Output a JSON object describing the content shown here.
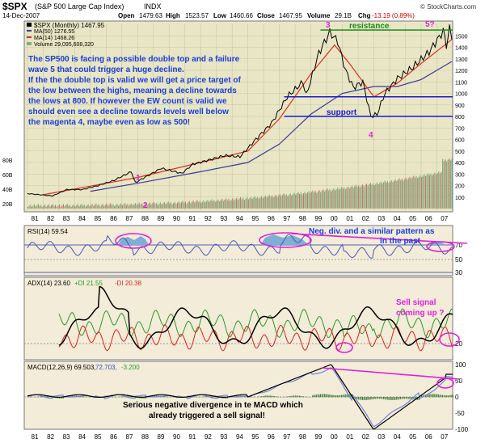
{
  "header": {
    "symbol": "$SPX",
    "name": "(S&P 500 Large Cap Index)",
    "exchange": "INDX",
    "date": "14-Dec-2007",
    "open_label": "Open",
    "open": "1479.63",
    "high_label": "High",
    "high": "1523.57",
    "low_label": "Low",
    "low": "1460.66",
    "close_label": "Close",
    "close": "1467.95",
    "volume_label": "Volume",
    "volume": "29.1B",
    "chg_label": "Chg",
    "chg": "-13.19 (0.89%)",
    "source": "© StockCharts.com"
  },
  "colors": {
    "price_panel_bg": "#e8e6c4",
    "indicator_bg": "#f3ecd8",
    "price": "#000000",
    "ma50": "#3a3aa0",
    "ma14": "#e03020",
    "annotation_text": "#1a3fe0",
    "magenta": "#e020d8",
    "resistance": "#1a8a1a",
    "support": "#1a1ad0"
  },
  "legend": {
    "price": "$SPX (Monthly) 1467.95",
    "ma50": "MA(50) 1276.55",
    "ma14": "MA(14) 1468.26",
    "volume": "Volume 29,095,608,320"
  },
  "annotations": {
    "main_text": [
      "The SP500 is facing a possible double top and a failure",
      "wave 5 that could trigger a huge decline.",
      "If the the double top is valid we will get a price target of",
      "the low between the highs, meaning a decline towards",
      "the lows at 800. If however the EW count is valid we",
      "should even see a decline towards levels well below",
      "the magenta 4, maybe even as low as 500!"
    ],
    "resistance": "resistance",
    "support": "support",
    "wave_labels": [
      "1",
      "2",
      "3",
      "4",
      "5?"
    ],
    "rsi_note": [
      "Neg. div. and a similar pattern as",
      "in the past"
    ],
    "adx_note": [
      "Sell signal",
      "coming up ?"
    ],
    "macd_note": [
      "Serious negative divergence in te MACD which",
      "already triggered a sell signal!"
    ]
  },
  "indicators": {
    "rsi_label": "RSI(14) 59.54",
    "adx_label": "ADX(14) 23.60",
    "pdi_label": "+DI 21.55",
    "mdi_label": "-DI 20.38",
    "macd_label": "MACD(12,26,9) 69.503,",
    "macd_signal_label": "72.703,",
    "macd_hist_label": "-3.200"
  },
  "chart_data": {
    "type": "line",
    "x_axis_labels": [
      "81",
      "82",
      "83",
      "84",
      "85",
      "86",
      "87",
      "88",
      "89",
      "90",
      "91",
      "92",
      "93",
      "94",
      "95",
      "96",
      "97",
      "98",
      "99",
      "00",
      "01",
      "02",
      "03",
      "04",
      "05",
      "06",
      "07"
    ],
    "price_axis_ticks": [
      1500,
      1400,
      1300,
      1200,
      1100,
      1000,
      900,
      800,
      700,
      600,
      500,
      400,
      300,
      200,
      100
    ],
    "volume_axis_ticks": [
      "80B",
      "60B",
      "40B",
      "20B"
    ],
    "rsi_ticks": [
      70,
      50,
      30
    ],
    "adx_ticks": [
      20
    ],
    "macd_ticks": [
      100,
      50,
      0,
      -50,
      -100
    ],
    "resistance_level": 1550,
    "support_levels": [
      970,
      800
    ],
    "series_price": [
      [
        1981.0,
        130
      ],
      [
        1982.6,
        110
      ],
      [
        1983.5,
        165
      ],
      [
        1984.5,
        165
      ],
      [
        1985.5,
        200
      ],
      [
        1986.5,
        245
      ],
      [
        1987.6,
        320
      ],
      [
        1987.85,
        225
      ],
      [
        1989.5,
        350
      ],
      [
        1990.8,
        305
      ],
      [
        1991.5,
        385
      ],
      [
        1992.5,
        420
      ],
      [
        1993.5,
        460
      ],
      [
        1994.5,
        450
      ],
      [
        1995.5,
        600
      ],
      [
        1996.5,
        740
      ],
      [
        1997.5,
        970
      ],
      [
        1998.5,
        1100
      ],
      [
        1998.7,
        980
      ],
      [
        1999.5,
        1350
      ],
      [
        2000.2,
        1530
      ],
      [
        2000.7,
        1450
      ],
      [
        2001.2,
        1200
      ],
      [
        2001.7,
        1050
      ],
      [
        2002.3,
        1100
      ],
      [
        2002.8,
        800
      ],
      [
        2003.2,
        820
      ],
      [
        2003.7,
        1000
      ],
      [
        2004.5,
        1130
      ],
      [
        2005.5,
        1230
      ],
      [
        2006.5,
        1360
      ],
      [
        2007.4,
        1540
      ],
      [
        2007.6,
        1420
      ],
      [
        2007.8,
        1560
      ],
      [
        2007.95,
        1468
      ]
    ],
    "series_ma50": [
      [
        1985.0,
        150
      ],
      [
        1988.0,
        220
      ],
      [
        1992.0,
        320
      ],
      [
        1995.0,
        400
      ],
      [
        1997.0,
        560
      ],
      [
        1999.0,
        820
      ],
      [
        2001.0,
        1000
      ],
      [
        2003.0,
        1060
      ],
      [
        2004.5,
        1060
      ],
      [
        2006.0,
        1120
      ],
      [
        2007.95,
        1277
      ]
    ],
    "series_ma14": [
      [
        1982.0,
        120
      ],
      [
        1986.0,
        220
      ],
      [
        1988.0,
        270
      ],
      [
        1992.0,
        400
      ],
      [
        1995.0,
        500
      ],
      [
        1997.0,
        780
      ],
      [
        1999.0,
        1170
      ],
      [
        2000.5,
        1420
      ],
      [
        2001.5,
        1250
      ],
      [
        2003.0,
        970
      ],
      [
        2004.5,
        1090
      ],
      [
        2006.0,
        1260
      ],
      [
        2007.95,
        1468
      ]
    ]
  }
}
